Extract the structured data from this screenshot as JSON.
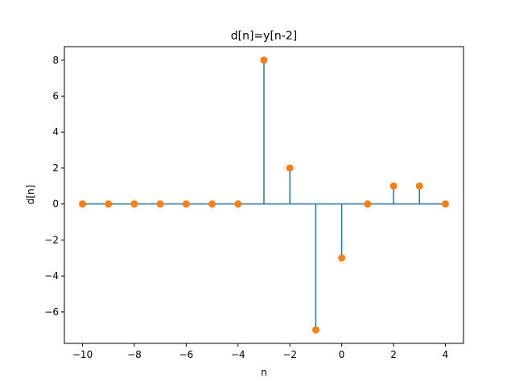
{
  "chart_data": {
    "type": "stem",
    "title": "d[n]=y[n-2]",
    "xlabel": "n",
    "ylabel": "d[n]",
    "x": [
      -10,
      -9,
      -8,
      -7,
      -6,
      -5,
      -4,
      -3,
      -2,
      -1,
      0,
      1,
      2,
      3,
      4
    ],
    "values": [
      0,
      0,
      0,
      0,
      0,
      0,
      0,
      8,
      2,
      -7,
      -3,
      0,
      1,
      1,
      0
    ],
    "xlim": [
      -10.7,
      4.7
    ],
    "ylim": [
      -7.75,
      8.75
    ],
    "xticks": [
      -10,
      -8,
      -6,
      -4,
      -2,
      0,
      2,
      4
    ],
    "yticks": [
      -6,
      -4,
      -2,
      0,
      2,
      4,
      6,
      8
    ],
    "grid": false,
    "colors": {
      "stem": "#1f77b4",
      "marker": "#ff7f0e",
      "axis": "#000000"
    }
  }
}
